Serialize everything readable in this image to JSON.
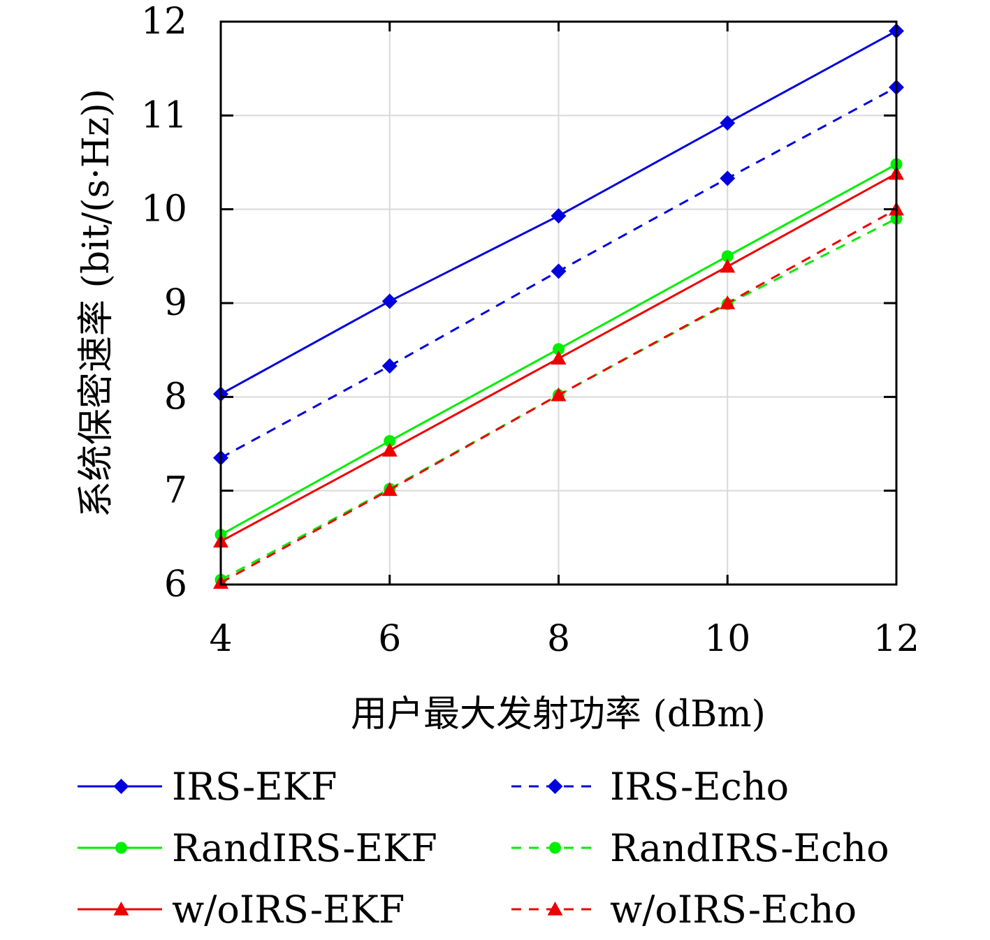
{
  "chart_data": {
    "type": "line",
    "title": "",
    "xlabel": "用户最大发射功率 (dBm)",
    "ylabel": "系统保密速率 (bit/(s·Hz))",
    "x": [
      4,
      6,
      8,
      10,
      12
    ],
    "xlim": [
      4,
      12
    ],
    "ylim": [
      6,
      12
    ],
    "xticks": [
      "4",
      "6",
      "8",
      "10",
      "12"
    ],
    "yticks": [
      "6",
      "7",
      "8",
      "9",
      "10",
      "11",
      "12"
    ],
    "grid": true,
    "legend_position": "bottom",
    "series": [
      {
        "name": "IRS-EKF",
        "color": "#0000dd",
        "style": "solid",
        "marker": "diamond",
        "values": [
          8.03,
          9.02,
          9.93,
          10.92,
          11.9
        ]
      },
      {
        "name": "IRS-Echo",
        "color": "#0000dd",
        "style": "dashed",
        "marker": "diamond",
        "values": [
          7.35,
          8.33,
          9.34,
          10.33,
          11.3
        ]
      },
      {
        "name": "RandIRS-EKF",
        "color": "#00ee00",
        "style": "solid",
        "marker": "circle",
        "values": [
          6.53,
          7.53,
          8.51,
          9.5,
          10.48
        ]
      },
      {
        "name": "RandIRS-Echo",
        "color": "#00ee00",
        "style": "dashed",
        "marker": "circle",
        "values": [
          6.05,
          7.02,
          8.02,
          8.99,
          9.9
        ]
      },
      {
        "name": "w/oIRS-EKF",
        "color": "#ee0000",
        "style": "solid",
        "marker": "triangle",
        "values": [
          6.46,
          7.43,
          8.41,
          9.39,
          10.38
        ]
      },
      {
        "name": "w/oIRS-Echo",
        "color": "#ee0000",
        "style": "dashed",
        "marker": "triangle",
        "values": [
          6.02,
          7.01,
          8.02,
          9.0,
          10.0
        ]
      }
    ]
  }
}
